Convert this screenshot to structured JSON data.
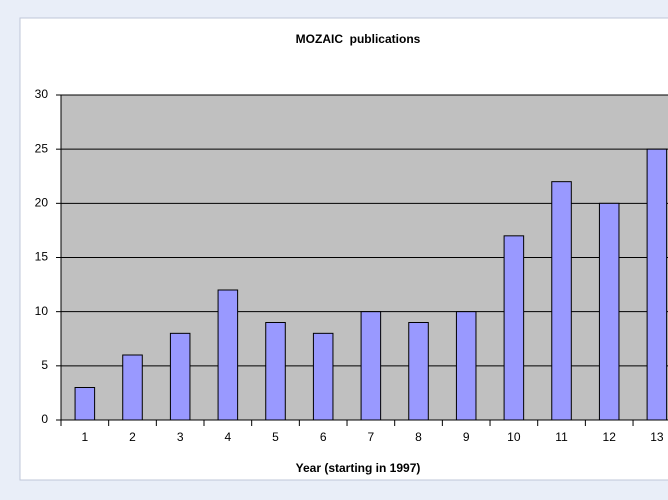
{
  "chart_data": {
    "type": "bar",
    "title": "MOZAIC  publications",
    "x_label": "Year (starting in 1997)",
    "categories": [
      "1",
      "2",
      "3",
      "4",
      "5",
      "6",
      "7",
      "8",
      "9",
      "10",
      "11",
      "12",
      "13"
    ],
    "values": [
      3,
      6,
      8,
      12,
      9,
      8,
      10,
      9,
      10,
      17,
      22,
      20,
      25
    ],
    "color": "#9999ff",
    "ylim": [
      0,
      30
    ],
    "yticks": [
      0,
      5,
      10,
      15,
      20,
      25,
      30
    ],
    "grid": true
  }
}
